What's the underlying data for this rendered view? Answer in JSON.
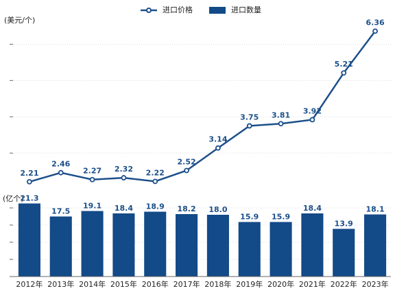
{
  "chart_data": [
    {
      "type": "line",
      "y_label": "(美元/个)",
      "series": [
        {
          "name": "进口价格",
          "color": "#1b4f8a",
          "values": [
            2.21,
            2.46,
            2.27,
            2.32,
            2.22,
            2.52,
            3.14,
            3.75,
            3.81,
            3.92,
            5.21,
            6.36
          ]
        }
      ],
      "ylim": [
        2,
        6.5
      ],
      "yticks": [
        3,
        4,
        5,
        6
      ],
      "grid": true
    },
    {
      "type": "bar",
      "y_label": "(亿个)",
      "categories": [
        "2012年",
        "2013年",
        "2014年",
        "2015年",
        "2016年",
        "2017年",
        "2018年",
        "2019年",
        "2020年",
        "2021年",
        "2022年",
        "2023年"
      ],
      "series": [
        {
          "name": "进口数量",
          "color": "#134a88",
          "values": [
            21.3,
            17.5,
            19.1,
            18.4,
            18.9,
            18.2,
            18.0,
            15.9,
            15.9,
            18.4,
            13.9,
            18.1
          ],
          "value_labels": [
            "21.3",
            "17.5",
            "19.1",
            "18.4",
            "18.9",
            "18.2",
            "18.0",
            "15.9",
            "15.9",
            "18.4",
            "13.9",
            "18.1"
          ]
        }
      ],
      "ylim": [
        0,
        22
      ],
      "yticks": [
        0,
        5,
        10,
        15,
        20
      ],
      "grid": true
    }
  ]
}
